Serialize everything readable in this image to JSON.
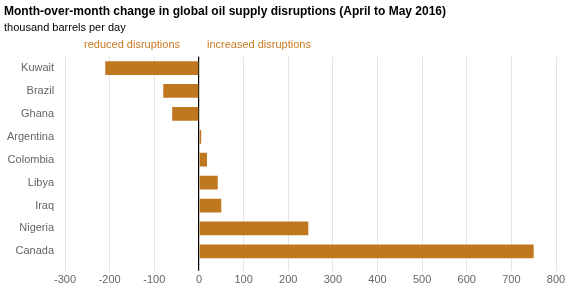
{
  "chart_data": {
    "type": "bar",
    "orientation": "horizontal",
    "title": "Month-over-month change in global oil supply disruptions (April to May 2016)",
    "subtitle": "thousand barrels per day",
    "categories": [
      "Kuwait",
      "Brazil",
      "Ghana",
      "Argentina",
      "Colombia",
      "Libya",
      "Iraq",
      "Nigeria",
      "Canada"
    ],
    "values": [
      -210,
      -80,
      -60,
      5,
      18,
      42,
      50,
      245,
      750
    ],
    "color": "#C07820",
    "xlim": [
      -300,
      800
    ],
    "xticks": [
      -300,
      -200,
      -100,
      0,
      100,
      200,
      300,
      400,
      500,
      600,
      700,
      800
    ],
    "grid": true,
    "annotations": [
      {
        "text": "reduced disruptions",
        "color": "#C87820"
      },
      {
        "text": "increased disruptions",
        "color": "#C87820"
      }
    ]
  }
}
